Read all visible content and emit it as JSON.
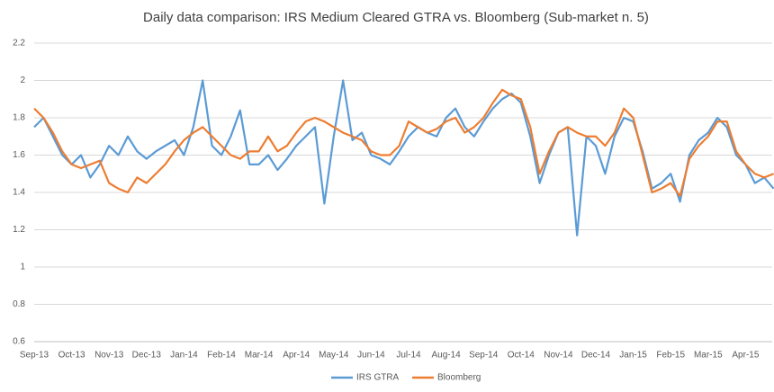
{
  "chart_data": {
    "type": "line",
    "title": "Daily data comparison: IRS Medium Cleared GTRA vs. Bloomberg (Sub-market n. 5)",
    "categories": [
      "Sep-13",
      null,
      null,
      null,
      "Oct-13",
      null,
      null,
      null,
      "Nov-13",
      null,
      null,
      null,
      "Dec-13",
      null,
      null,
      null,
      "Jan-14",
      null,
      null,
      null,
      "Feb-14",
      null,
      null,
      null,
      "Mar-14",
      null,
      null,
      null,
      "Apr-14",
      null,
      null,
      null,
      "May-14",
      null,
      null,
      null,
      "Jun-14",
      null,
      null,
      null,
      "Jul-14",
      null,
      null,
      null,
      "Aug-14",
      null,
      null,
      null,
      "Sep-14",
      null,
      null,
      null,
      "Oct-14",
      null,
      null,
      null,
      "Nov-14",
      null,
      null,
      null,
      "Dec-14",
      null,
      null,
      null,
      "Jan-15",
      null,
      null,
      null,
      "Feb-15",
      null,
      null,
      null,
      "Mar-15",
      null,
      null,
      null,
      "Apr-15",
      null,
      null,
      null
    ],
    "series": [
      {
        "name": "IRS GTRA",
        "color": "#5b9bd5",
        "values": [
          1.75,
          1.8,
          1.7,
          1.6,
          1.55,
          1.6,
          1.48,
          1.55,
          1.65,
          1.6,
          1.7,
          1.62,
          1.58,
          1.62,
          1.65,
          1.68,
          1.6,
          1.75,
          2.0,
          1.65,
          1.6,
          1.7,
          1.84,
          1.55,
          1.55,
          1.6,
          1.52,
          1.58,
          1.65,
          1.7,
          1.75,
          1.34,
          1.7,
          2.0,
          1.68,
          1.72,
          1.6,
          1.58,
          1.55,
          1.62,
          1.7,
          1.75,
          1.72,
          1.7,
          1.8,
          1.85,
          1.75,
          1.7,
          1.78,
          1.85,
          1.9,
          1.93,
          1.88,
          1.7,
          1.45,
          1.6,
          1.72,
          1.75,
          1.17,
          1.7,
          1.65,
          1.5,
          1.7,
          1.8,
          1.78,
          1.62,
          1.42,
          1.45,
          1.5,
          1.35,
          1.6,
          1.68,
          1.72,
          1.8,
          1.75,
          1.6,
          1.55,
          1.45,
          1.48,
          1.42
        ]
      },
      {
        "name": "Bloomberg",
        "color": "#ed7d31",
        "values": [
          1.85,
          1.8,
          1.72,
          1.62,
          1.55,
          1.53,
          1.55,
          1.57,
          1.45,
          1.42,
          1.4,
          1.48,
          1.45,
          1.5,
          1.55,
          1.62,
          1.68,
          1.72,
          1.75,
          1.7,
          1.65,
          1.6,
          1.58,
          1.62,
          1.62,
          1.7,
          1.62,
          1.65,
          1.72,
          1.78,
          1.8,
          1.78,
          1.75,
          1.72,
          1.7,
          1.68,
          1.62,
          1.6,
          1.6,
          1.65,
          1.78,
          1.75,
          1.72,
          1.74,
          1.78,
          1.8,
          1.72,
          1.75,
          1.8,
          1.88,
          1.95,
          1.92,
          1.9,
          1.75,
          1.5,
          1.62,
          1.72,
          1.75,
          1.72,
          1.7,
          1.7,
          1.65,
          1.72,
          1.85,
          1.8,
          1.6,
          1.4,
          1.42,
          1.45,
          1.38,
          1.58,
          1.65,
          1.7,
          1.78,
          1.78,
          1.62,
          1.55,
          1.5,
          1.48,
          1.5
        ]
      }
    ],
    "ylim": [
      0.6,
      2.2
    ],
    "yticks": [
      0.6,
      0.8,
      1,
      1.2,
      1.4,
      1.6,
      1.8,
      2,
      2.2
    ],
    "grid": true,
    "legend": "bottom"
  }
}
